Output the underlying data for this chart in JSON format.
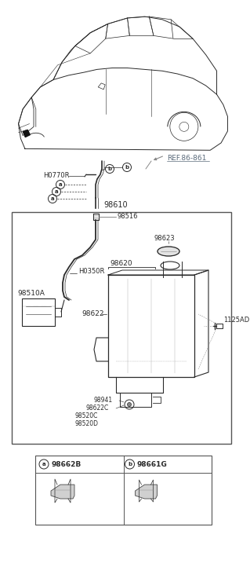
{
  "bg_color": "#ffffff",
  "line_color": "#2a2a2a",
  "label_color": "#2a2a2a",
  "ref_color": "#5a6a7a",
  "fig_width": 3.19,
  "fig_height": 7.27,
  "dpi": 100,
  "labels": {
    "REF_86_861": "REF.86-861",
    "H0770R": "H0770R",
    "98610": "98610",
    "98516": "98516",
    "H0350R": "H0350R",
    "98620": "98620",
    "98622": "98622",
    "98623": "98623",
    "98510A": "98510A",
    "1125AD": "1125AD",
    "98941": "98941",
    "98622C": "98622C",
    "98520C": "98520C",
    "98520D": "98520D",
    "a_label": "a",
    "b_label": "b",
    "98662B": "98662B",
    "98661G": "98661G"
  }
}
